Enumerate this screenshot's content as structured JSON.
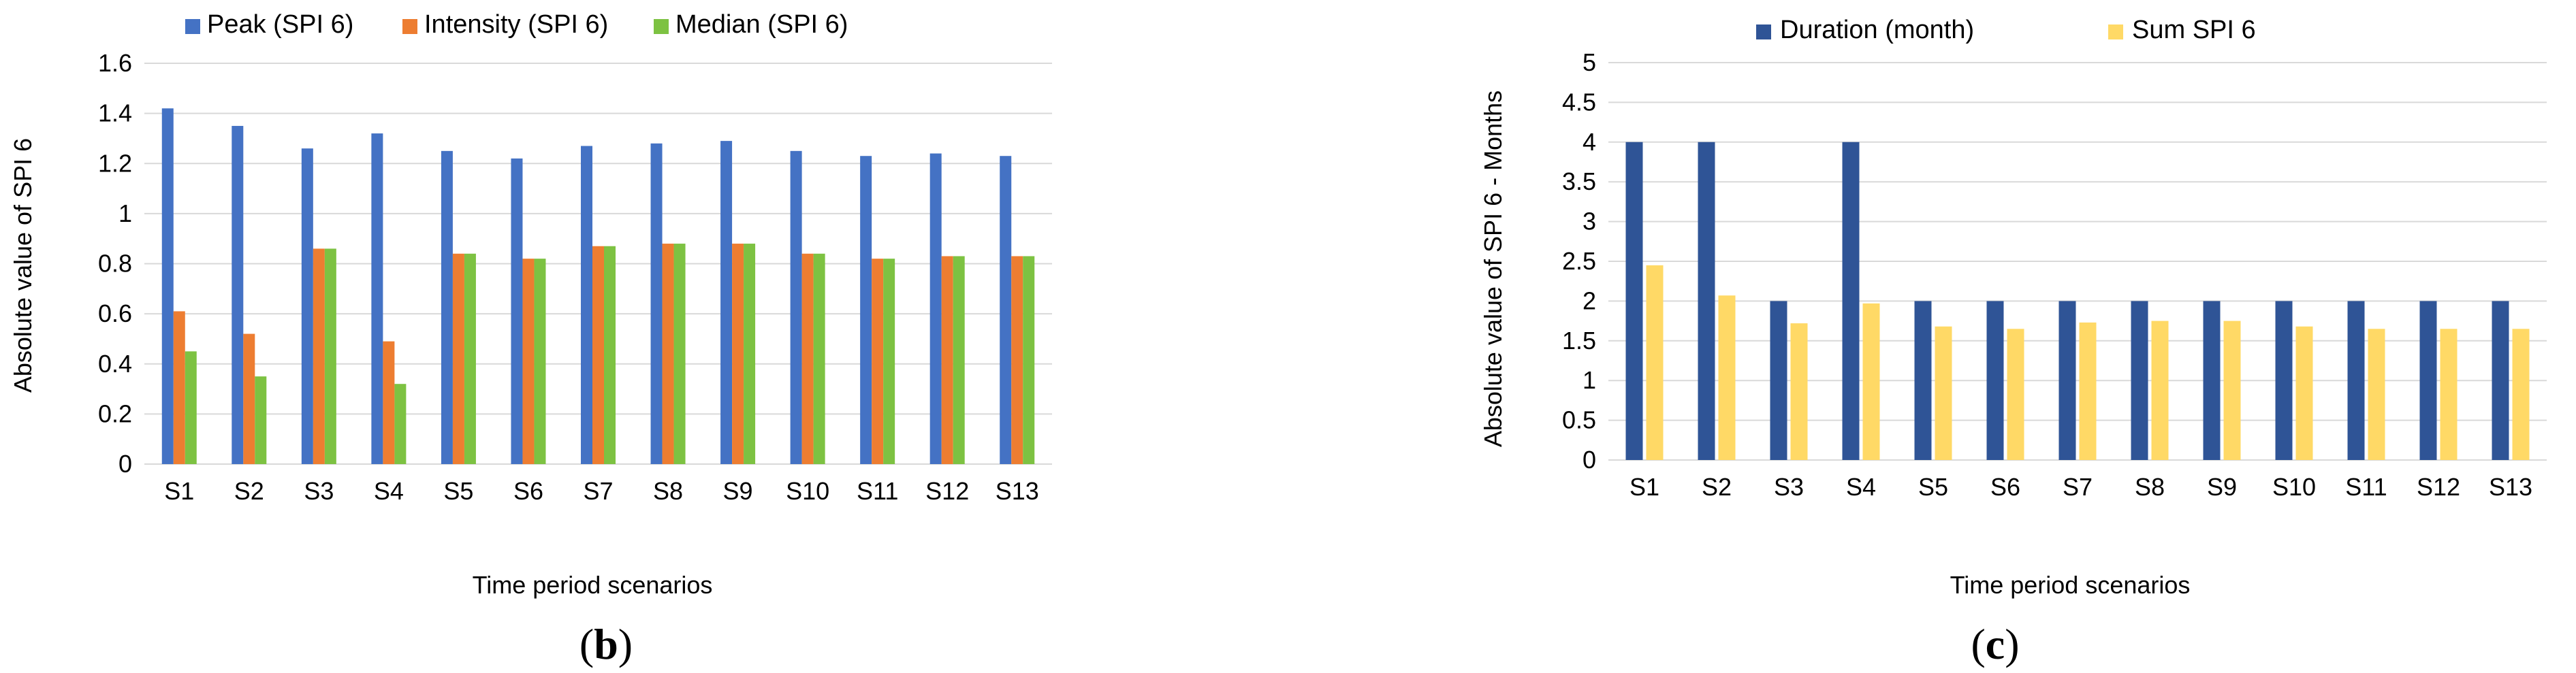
{
  "chart_data": [
    {
      "type": "bar",
      "panel_label": "b",
      "categories": [
        "S1",
        "S2",
        "S3",
        "S4",
        "S5",
        "S6",
        "S7",
        "S8",
        "S9",
        "S10",
        "S11",
        "S12",
        "S13"
      ],
      "series": [
        {
          "name": "Peak (SPI 6)",
          "color": "#4472C4",
          "values": [
            1.42,
            1.35,
            1.26,
            1.32,
            1.25,
            1.22,
            1.27,
            1.28,
            1.29,
            1.25,
            1.23,
            1.24,
            1.23
          ]
        },
        {
          "name": "Intensity (SPI 6)",
          "color": "#ED7D31",
          "values": [
            0.61,
            0.52,
            0.86,
            0.49,
            0.84,
            0.82,
            0.87,
            0.88,
            0.88,
            0.84,
            0.82,
            0.83,
            0.83
          ]
        },
        {
          "name": "Median (SPI 6)",
          "color": "#7DC242",
          "values": [
            0.45,
            0.35,
            0.86,
            0.32,
            0.84,
            0.82,
            0.87,
            0.88,
            0.88,
            0.84,
            0.82,
            0.83,
            0.83
          ]
        }
      ],
      "yticks": [
        "0",
        "0.2",
        "0.4",
        "0.6",
        "0.8",
        "1",
        "1.2",
        "1.4",
        "1.6"
      ],
      "ylim": [
        0,
        1.6
      ],
      "xlabel": "Time period scenarios",
      "ylabel": "Absolute value of SPI 6",
      "legend_position": "top",
      "grid": "horizontal"
    },
    {
      "type": "bar",
      "panel_label": "c",
      "categories": [
        "S1",
        "S2",
        "S3",
        "S4",
        "S5",
        "S6",
        "S7",
        "S8",
        "S9",
        "S10",
        "S11",
        "S12",
        "S13"
      ],
      "series": [
        {
          "name": "Duration (month)",
          "color": "#2F5496",
          "values": [
            4,
            4,
            2,
            4,
            2,
            2,
            2,
            2,
            2,
            2,
            2,
            2,
            2
          ]
        },
        {
          "name": "Sum SPI 6",
          "color": "#FFD966",
          "values": [
            2.45,
            2.07,
            1.72,
            1.97,
            1.68,
            1.65,
            1.73,
            1.75,
            1.75,
            1.68,
            1.65,
            1.65,
            1.65
          ]
        }
      ],
      "yticks": [
        "0",
        "0.5",
        "1",
        "1.5",
        "2",
        "2.5",
        "3",
        "3.5",
        "4",
        "4.5",
        "5"
      ],
      "ylim": [
        0,
        5
      ],
      "xlabel": "Time period scenarios",
      "ylabel": "Absolute value of SPI 6 - Months",
      "legend_position": "top",
      "grid": "horizontal"
    }
  ]
}
